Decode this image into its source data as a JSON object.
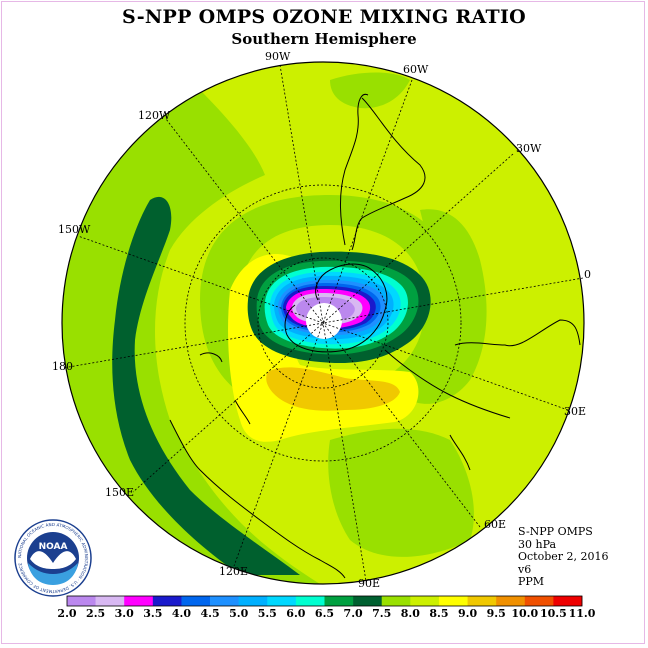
{
  "title": "S-NPP OMPS OZONE MIXING RATIO",
  "subtitle": "Southern Hemisphere",
  "longitude_labels": [
    "90W",
    "60W",
    "30W",
    "0",
    "30E",
    "60E",
    "90E",
    "120E",
    "150E",
    "180",
    "150W",
    "120W"
  ],
  "info": {
    "instrument": "S-NPP OMPS",
    "level": "30 hPa",
    "date": "October 2, 2016",
    "version": "v6",
    "units": "PPM"
  },
  "logo": {
    "text": "NOAA",
    "ring_text": "NATIONAL OCEANIC AND ATMOSPHERIC ADMINISTRATION · U.S. DEPARTMENT OF COMMERCE"
  },
  "colorbar": {
    "ticks": [
      "2.0",
      "2.5",
      "3.0",
      "3.5",
      "4.0",
      "4.5",
      "5.0",
      "5.5",
      "6.0",
      "6.5",
      "7.0",
      "7.5",
      "8.0",
      "8.5",
      "9.0",
      "9.5",
      "10.0",
      "10.5",
      "11.0"
    ],
    "colors": [
      "#bb88ee",
      "#d8b8f2",
      "#ff00ff",
      "#1a1acc",
      "#0066ee",
      "#1e90ff",
      "#00b0ff",
      "#00d8ff",
      "#00ffd0",
      "#00a040",
      "#006030",
      "#99e000",
      "#ccf000",
      "#ffff00",
      "#f0c800",
      "#f09000",
      "#f05000",
      "#ee0000",
      "#8b4a2a"
    ]
  },
  "field_colors": {
    "light_green": "#ccf000",
    "mid_green": "#99e000",
    "dark_green": "#00602e",
    "yellow": "#ffff00",
    "gold": "#f0c800"
  }
}
